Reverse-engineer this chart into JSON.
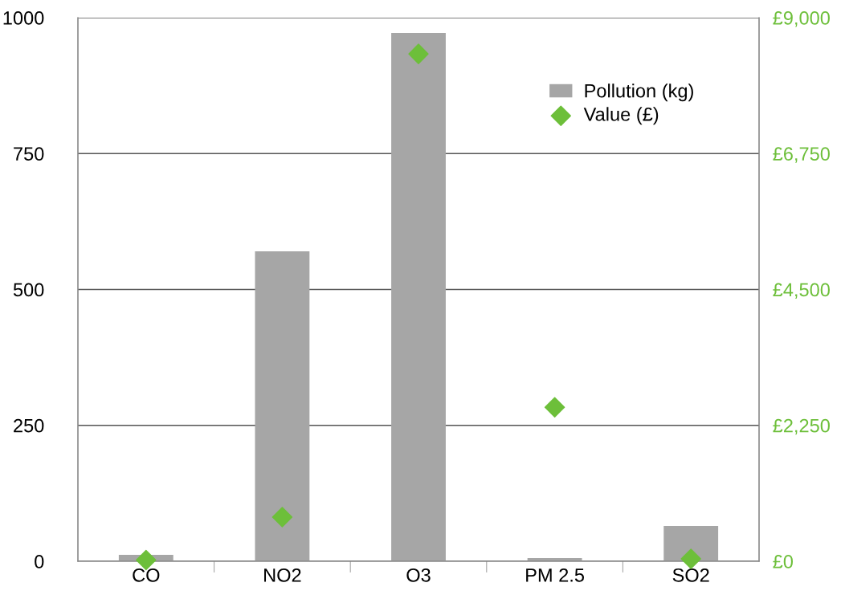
{
  "chart_data": {
    "type": "bar",
    "categories": [
      "CO",
      "NO2",
      "O3",
      "PM 2.5",
      "SO2"
    ],
    "series": [
      {
        "name": "Pollution (kg)",
        "color": "#a6a6a6",
        "values": [
          12,
          570,
          972,
          6,
          65
        ]
      },
      {
        "name": "Value (£)",
        "type": "scatter",
        "axis": "y2",
        "color": "#6dbf3a",
        "marker": "diamond",
        "values": [
          20,
          730,
          8400,
          2550,
          40
        ]
      }
    ],
    "ylim": [
      0,
      1000
    ],
    "yticks": [
      0,
      250,
      500,
      750,
      1000
    ],
    "y2lim": [
      0,
      9000
    ],
    "y2ticks": [
      {
        "value": 0,
        "label": "£0"
      },
      {
        "value": 2250,
        "label": "£2,250"
      },
      {
        "value": 4500,
        "label": "£4,500"
      },
      {
        "value": 6750,
        "label": "£6,750"
      },
      {
        "value": 9000,
        "label": "£9,000"
      }
    ],
    "grid": "y",
    "legend": "top right"
  }
}
